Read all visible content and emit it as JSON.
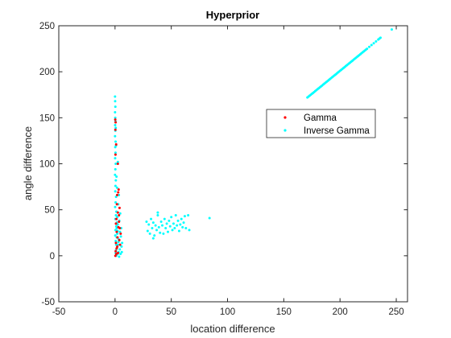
{
  "chart_data": {
    "type": "scatter",
    "title": "Hyperprior",
    "xlabel": "location difference",
    "ylabel": "angle difference",
    "xlim": [
      -50,
      260
    ],
    "ylim": [
      -50,
      250
    ],
    "xticks": [
      -50,
      0,
      50,
      100,
      150,
      200,
      250
    ],
    "yticks": [
      -50,
      0,
      50,
      100,
      150,
      200,
      250
    ],
    "grid": false,
    "legend_position": "right",
    "series": [
      {
        "name": "Gamma",
        "color": "#ff0000",
        "points": [
          [
            0.2,
            148
          ],
          [
            0.5,
            145
          ],
          [
            0.3,
            137
          ],
          [
            1.0,
            121
          ],
          [
            2.5,
            100
          ],
          [
            3.2,
            72
          ],
          [
            2.8,
            69
          ],
          [
            1.9,
            66
          ],
          [
            4.0,
            52
          ],
          [
            2.5,
            47
          ],
          [
            3.5,
            44
          ],
          [
            1.2,
            40
          ],
          [
            3.5,
            37
          ],
          [
            0.8,
            35
          ],
          [
            3.0,
            31
          ],
          [
            1.5,
            26
          ],
          [
            2.2,
            20
          ],
          [
            3.8,
            17
          ],
          [
            0.8,
            14
          ],
          [
            4.5,
            12
          ],
          [
            2.0,
            10
          ],
          [
            1.4,
            8
          ],
          [
            0.6,
            5
          ],
          [
            2.6,
            3
          ],
          [
            1.1,
            2
          ],
          [
            0.3,
            0
          ],
          [
            5.0,
            24
          ],
          [
            4.2,
            30
          ],
          [
            1.7,
            56
          ],
          [
            0.4,
            110
          ]
        ]
      },
      {
        "name": "Inverse Gamma",
        "color": "#00ffff",
        "points": [
          [
            0.0,
            173
          ],
          [
            0.1,
            168
          ],
          [
            0.3,
            162
          ],
          [
            0.0,
            156
          ],
          [
            0.2,
            150
          ],
          [
            0.4,
            146
          ],
          [
            0.1,
            142
          ],
          [
            0.3,
            136
          ],
          [
            0.0,
            130
          ],
          [
            0.5,
            124
          ],
          [
            0.2,
            118
          ],
          [
            0.4,
            112
          ],
          [
            0.1,
            106
          ],
          [
            0.6,
            100
          ],
          [
            0.3,
            94
          ],
          [
            0.0,
            88
          ],
          [
            0.7,
            82
          ],
          [
            0.4,
            76
          ],
          [
            0.2,
            70
          ],
          [
            0.9,
            64
          ],
          [
            0.5,
            58
          ],
          [
            0.1,
            53
          ],
          [
            1.2,
            48
          ],
          [
            0.8,
            44
          ],
          [
            0.3,
            40
          ],
          [
            1.6,
            36
          ],
          [
            1.1,
            32
          ],
          [
            0.4,
            28
          ],
          [
            2.0,
            24
          ],
          [
            1.5,
            20
          ],
          [
            0.6,
            16
          ],
          [
            2.6,
            12
          ],
          [
            1.9,
            9
          ],
          [
            0.8,
            6
          ],
          [
            3.1,
            4
          ],
          [
            2.3,
            2
          ],
          [
            0.9,
            0
          ],
          [
            3.6,
            -1
          ],
          [
            1.4,
            1
          ],
          [
            0.5,
            3
          ],
          [
            4.2,
            7
          ],
          [
            3.0,
            15
          ],
          [
            2.2,
            27
          ],
          [
            3.8,
            38
          ],
          [
            4.6,
            46
          ],
          [
            5.2,
            21
          ],
          [
            5.8,
            10
          ],
          [
            4.9,
            2
          ],
          [
            2.8,
            56
          ],
          [
            3.4,
            66
          ],
          [
            1.8,
            74
          ],
          [
            1.3,
            86
          ],
          [
            2.5,
            102
          ],
          [
            0.9,
            120
          ],
          [
            0.6,
            139
          ],
          [
            1.5,
            30
          ],
          [
            2.4,
            34
          ],
          [
            3.2,
            18
          ],
          [
            5.5,
            30
          ],
          [
            4.4,
            26
          ],
          [
            6.0,
            4
          ],
          [
            1.0,
            12
          ],
          [
            0.2,
            22
          ],
          [
            2.0,
            42
          ],
          [
            6.3,
            14
          ],
          [
            28,
            37
          ],
          [
            29,
            27
          ],
          [
            30,
            34
          ],
          [
            31,
            24
          ],
          [
            32,
            40
          ],
          [
            33,
            30
          ],
          [
            34,
            19
          ],
          [
            34,
            36
          ],
          [
            35,
            22
          ],
          [
            36,
            33
          ],
          [
            37,
            28
          ],
          [
            38,
            44
          ],
          [
            38,
            47
          ],
          [
            39,
            31
          ],
          [
            40,
            25
          ],
          [
            41,
            37
          ],
          [
            42,
            33
          ],
          [
            43,
            24
          ],
          [
            44,
            40
          ],
          [
            45,
            30
          ],
          [
            46,
            35
          ],
          [
            47,
            26
          ],
          [
            48,
            38
          ],
          [
            49,
            32
          ],
          [
            50,
            42
          ],
          [
            51,
            28
          ],
          [
            52,
            35
          ],
          [
            53,
            30
          ],
          [
            54,
            44
          ],
          [
            55,
            33
          ],
          [
            56,
            38
          ],
          [
            57,
            27
          ],
          [
            58,
            34
          ],
          [
            59,
            40
          ],
          [
            60,
            31
          ],
          [
            61,
            36
          ],
          [
            62,
            43
          ],
          [
            63,
            30
          ],
          [
            65,
            44
          ],
          [
            66,
            28
          ],
          [
            84,
            41
          ],
          [
            171,
            172
          ],
          [
            172,
            173
          ],
          [
            173,
            174
          ],
          [
            174,
            175
          ],
          [
            175,
            176
          ],
          [
            176,
            177
          ],
          [
            177,
            178
          ],
          [
            178,
            179
          ],
          [
            179,
            180
          ],
          [
            180,
            181
          ],
          [
            181,
            182
          ],
          [
            182,
            183
          ],
          [
            183,
            184
          ],
          [
            184,
            185
          ],
          [
            185,
            186
          ],
          [
            186,
            187
          ],
          [
            187,
            188
          ],
          [
            188,
            189
          ],
          [
            189,
            190
          ],
          [
            190,
            191
          ],
          [
            191,
            192
          ],
          [
            192,
            193
          ],
          [
            193,
            194
          ],
          [
            194,
            195
          ],
          [
            195,
            196
          ],
          [
            196,
            197
          ],
          [
            197,
            198
          ],
          [
            198,
            199
          ],
          [
            199,
            200
          ],
          [
            200,
            201
          ],
          [
            201,
            202
          ],
          [
            202,
            203
          ],
          [
            203,
            204
          ],
          [
            204,
            205
          ],
          [
            205,
            206
          ],
          [
            206,
            207
          ],
          [
            207,
            208
          ],
          [
            208,
            209
          ],
          [
            209,
            210
          ],
          [
            210,
            211
          ],
          [
            211,
            212
          ],
          [
            212,
            213
          ],
          [
            213,
            214
          ],
          [
            214,
            215
          ],
          [
            215,
            216
          ],
          [
            216,
            217
          ],
          [
            217,
            218
          ],
          [
            218,
            219
          ],
          [
            219,
            220
          ],
          [
            220,
            221
          ],
          [
            221,
            222
          ],
          [
            222,
            223
          ],
          [
            223,
            224
          ],
          [
            224,
            225
          ],
          [
            226,
            227
          ],
          [
            228,
            229
          ],
          [
            230,
            231
          ],
          [
            232,
            233
          ],
          [
            234,
            235
          ],
          [
            235,
            236
          ],
          [
            236,
            237
          ],
          [
            246,
            246
          ]
        ]
      }
    ]
  }
}
